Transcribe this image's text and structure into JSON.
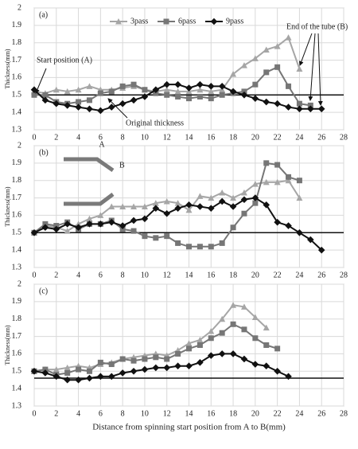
{
  "chart_data": [
    {
      "type": "line",
      "label": "(a)",
      "ylabel": "Thickness(mm)",
      "x": [
        0,
        1,
        2,
        3,
        4,
        5,
        6,
        7,
        8,
        9,
        10,
        11,
        12,
        13,
        14,
        15,
        16,
        17,
        18,
        19,
        20,
        21,
        22,
        23,
        24,
        25,
        26
      ],
      "xlim": [
        0,
        28
      ],
      "xticks": [
        0,
        2,
        4,
        6,
        8,
        10,
        12,
        14,
        16,
        18,
        20,
        22,
        24,
        26,
        28
      ],
      "ylim": [
        1.3,
        2
      ],
      "yticks": [
        1.3,
        1.4,
        1.5,
        1.6,
        1.7,
        1.8,
        1.9,
        2
      ],
      "grid": true,
      "reference_line": 1.5,
      "legend": "top",
      "annotations": [
        "Start position (A)",
        "Original thickness",
        "End of the tube (B)"
      ],
      "series": [
        {
          "name": "3pass",
          "color": "#a6a6a6",
          "marker": "triangle",
          "values": [
            1.52,
            1.51,
            1.53,
            1.52,
            1.53,
            1.55,
            1.53,
            1.53,
            1.54,
            1.55,
            1.53,
            1.52,
            1.53,
            1.52,
            1.52,
            1.53,
            1.52,
            1.53,
            1.62,
            1.67,
            1.71,
            1.76,
            1.78,
            1.83,
            1.65,
            null,
            null
          ]
        },
        {
          "name": "6pass",
          "color": "#767676",
          "marker": "square",
          "values": [
            1.5,
            1.5,
            1.46,
            1.45,
            1.46,
            1.47,
            1.51,
            1.52,
            1.55,
            1.56,
            1.53,
            1.51,
            1.5,
            1.49,
            1.48,
            1.49,
            1.48,
            1.5,
            1.51,
            1.52,
            1.56,
            1.63,
            1.66,
            1.55,
            1.45,
            1.44,
            null
          ]
        },
        {
          "name": "9pass",
          "color": "#111111",
          "marker": "diamond",
          "values": [
            1.53,
            1.47,
            1.45,
            1.44,
            1.43,
            1.42,
            1.41,
            1.43,
            1.45,
            1.47,
            1.49,
            1.53,
            1.56,
            1.56,
            1.54,
            1.56,
            1.55,
            1.55,
            1.52,
            1.5,
            1.48,
            1.46,
            1.45,
            1.43,
            1.42,
            1.42,
            1.42
          ]
        }
      ]
    },
    {
      "type": "line",
      "label": "(b)",
      "ylabel": "Thickness(mm)",
      "x": [
        0,
        1,
        2,
        3,
        4,
        5,
        6,
        7,
        8,
        9,
        10,
        11,
        12,
        13,
        14,
        15,
        16,
        17,
        18,
        19,
        20,
        21,
        22,
        23,
        24,
        25,
        26
      ],
      "xlim": [
        0,
        28
      ],
      "xticks": [
        0,
        2,
        4,
        6,
        8,
        10,
        12,
        14,
        16,
        18,
        20,
        22,
        24,
        26,
        28
      ],
      "ylim": [
        1.3,
        2
      ],
      "yticks": [
        1.3,
        1.4,
        1.5,
        1.6,
        1.7,
        1.8,
        1.9,
        2
      ],
      "grid": true,
      "reference_line": 1.5,
      "annotations": [
        "A",
        "B"
      ],
      "series": [
        {
          "color": "#a6a6a6",
          "marker": "triangle",
          "values": [
            1.5,
            1.54,
            1.53,
            1.51,
            1.55,
            1.58,
            1.6,
            1.65,
            1.65,
            1.65,
            1.65,
            1.67,
            1.68,
            1.67,
            1.63,
            1.71,
            1.7,
            1.73,
            1.7,
            1.73,
            1.78,
            1.79,
            1.79,
            1.8,
            1.7,
            null,
            null
          ]
        },
        {
          "color": "#767676",
          "marker": "square",
          "values": [
            1.5,
            1.55,
            1.54,
            1.56,
            1.52,
            1.55,
            1.55,
            1.57,
            1.52,
            1.51,
            1.48,
            1.47,
            1.48,
            1.44,
            1.42,
            1.42,
            1.42,
            1.44,
            1.53,
            1.61,
            1.67,
            1.9,
            1.89,
            1.82,
            1.8,
            null,
            null
          ]
        },
        {
          "color": "#111111",
          "marker": "diamond",
          "values": [
            1.5,
            1.53,
            1.52,
            1.55,
            1.53,
            1.55,
            1.55,
            1.56,
            1.54,
            1.57,
            1.58,
            1.64,
            1.61,
            1.64,
            1.66,
            1.65,
            1.64,
            1.68,
            1.65,
            1.69,
            1.7,
            1.66,
            1.56,
            1.54,
            1.5,
            1.46,
            1.4
          ]
        }
      ]
    },
    {
      "type": "line",
      "label": "(c)",
      "ylabel": "Thickness(mm)",
      "xlabel": "Distance from spinning start position from A to B(mm)",
      "x": [
        0,
        1,
        2,
        3,
        4,
        5,
        6,
        7,
        8,
        9,
        10,
        11,
        12,
        13,
        14,
        15,
        16,
        17,
        18,
        19,
        20,
        21,
        22,
        23,
        24,
        25,
        26
      ],
      "xlim": [
        0,
        28
      ],
      "xticks": [
        0,
        2,
        4,
        6,
        8,
        10,
        12,
        14,
        16,
        18,
        20,
        22,
        24,
        26,
        28
      ],
      "ylim": [
        1.3,
        2
      ],
      "yticks": [
        1.3,
        1.4,
        1.5,
        1.6,
        1.7,
        1.8,
        1.9,
        2
      ],
      "grid": true,
      "reference_line": 1.46,
      "series": [
        {
          "color": "#a6a6a6",
          "marker": "triangle",
          "values": [
            1.5,
            1.51,
            1.51,
            1.52,
            1.53,
            1.52,
            1.54,
            1.55,
            1.57,
            1.58,
            1.59,
            1.6,
            1.59,
            1.62,
            1.66,
            1.68,
            1.73,
            1.8,
            1.88,
            1.87,
            1.81,
            1.75,
            null,
            null,
            null,
            null,
            null
          ]
        },
        {
          "color": "#767676",
          "marker": "square",
          "values": [
            1.5,
            1.51,
            1.48,
            1.49,
            1.51,
            1.5,
            1.55,
            1.54,
            1.57,
            1.56,
            1.57,
            1.58,
            1.57,
            1.6,
            1.63,
            1.65,
            1.69,
            1.72,
            1.77,
            1.74,
            1.69,
            1.65,
            1.63,
            null,
            null,
            null,
            null
          ]
        },
        {
          "color": "#111111",
          "marker": "diamond",
          "values": [
            1.5,
            1.49,
            1.47,
            1.45,
            1.45,
            1.46,
            1.47,
            1.47,
            1.49,
            1.5,
            1.51,
            1.52,
            1.52,
            1.53,
            1.53,
            1.55,
            1.59,
            1.6,
            1.6,
            1.57,
            1.54,
            1.53,
            1.5,
            1.47,
            null,
            null,
            null
          ]
        }
      ]
    }
  ]
}
